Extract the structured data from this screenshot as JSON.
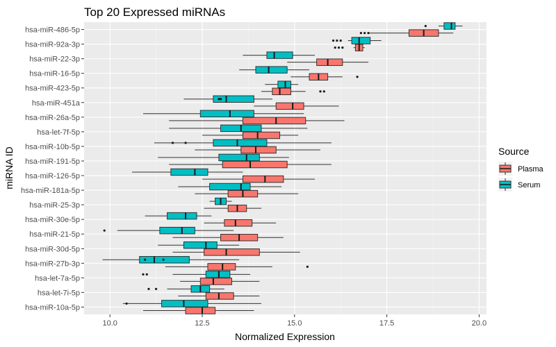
{
  "chart_data": {
    "type": "boxplot",
    "orientation": "horizontal",
    "title": "Top 20 Expressed miRNAs",
    "xlabel": "Normalized Expression",
    "ylabel": "miRNA ID",
    "xlim": [
      9.3,
      20.2
    ],
    "xticks": [
      "10.0",
      "12.5",
      "15.0",
      "17.5",
      "20.0"
    ],
    "xtick_values": [
      10,
      12.5,
      15,
      17.5,
      20
    ],
    "legend": {
      "title": "Source",
      "position": "right",
      "entries": [
        {
          "name": "Plasma",
          "color": "#F8766D"
        },
        {
          "name": "Serum",
          "color": "#00BFC4"
        }
      ]
    },
    "panel_background": "#EBEBEB",
    "grid": true,
    "categories": [
      "hsa-miR-486-5p",
      "hsa-miR-92a-3p",
      "hsa-miR-22-3p",
      "hsa-miR-16-5p",
      "hsa-miR-423-5p",
      "hsa-miR-451a",
      "hsa-miR-26a-5p",
      "hsa-let-7f-5p",
      "hsa-miR-10b-5p",
      "hsa-miR-191-5p",
      "hsa-miR-126-5p",
      "hsa-miR-181a-5p",
      "hsa-miR-25-3p",
      "hsa-miR-30e-5p",
      "hsa-miR-21-5p",
      "hsa-miR-30d-5p",
      "hsa-miR-27b-3p",
      "hsa-let-7a-5p",
      "hsa-let-7i-5p",
      "hsa-miR-10a-5p"
    ],
    "series": [
      {
        "name": "Plasma",
        "boxes": [
          {
            "min": 17.0,
            "q1": 18.1,
            "median": 18.5,
            "q3": 18.9,
            "max": 19.3,
            "outliers": [
              16.8,
              16.9,
              17.0
            ]
          },
          {
            "min": 16.6,
            "q1": 16.65,
            "median": 16.75,
            "q3": 16.85,
            "max": 16.9,
            "outliers": [
              16.1,
              16.2,
              16.3
            ]
          },
          {
            "min": 14.8,
            "q1": 15.6,
            "median": 15.9,
            "q3": 16.3,
            "max": 17.0,
            "outliers": []
          },
          {
            "min": 14.9,
            "q1": 15.4,
            "median": 15.65,
            "q3": 15.9,
            "max": 16.3,
            "outliers": [
              16.7
            ]
          },
          {
            "min": 14.1,
            "q1": 14.4,
            "median": 14.6,
            "q3": 14.9,
            "max": 15.3,
            "outliers": [
              15.7,
              15.8
            ]
          },
          {
            "min": 13.9,
            "q1": 14.5,
            "median": 14.95,
            "q3": 15.25,
            "max": 16.2,
            "outliers": []
          },
          {
            "min": 11.6,
            "q1": 13.6,
            "median": 14.5,
            "q3": 15.3,
            "max": 16.35,
            "outliers": []
          },
          {
            "min": 12.5,
            "q1": 13.6,
            "median": 14.0,
            "q3": 14.6,
            "max": 15.1,
            "outliers": []
          },
          {
            "min": 12.3,
            "q1": 13.55,
            "median": 13.95,
            "q3": 14.5,
            "max": 15.7,
            "outliers": []
          },
          {
            "min": 11.6,
            "q1": 13.05,
            "median": 13.8,
            "q3": 14.8,
            "max": 16.0,
            "outliers": []
          },
          {
            "min": 12.5,
            "q1": 13.6,
            "median": 14.2,
            "q3": 14.7,
            "max": 15.55,
            "outliers": []
          },
          {
            "min": 12.3,
            "q1": 13.2,
            "median": 13.6,
            "q3": 14.0,
            "max": 15.1,
            "outliers": []
          },
          {
            "min": 12.55,
            "q1": 13.2,
            "median": 13.45,
            "q3": 13.7,
            "max": 14.1,
            "outliers": []
          },
          {
            "min": 12.55,
            "q1": 13.1,
            "median": 13.4,
            "q3": 13.85,
            "max": 14.5,
            "outliers": []
          },
          {
            "min": 11.7,
            "q1": 13.0,
            "median": 13.5,
            "q3": 14.0,
            "max": 14.7,
            "outliers": []
          },
          {
            "min": 11.7,
            "q1": 12.55,
            "median": 13.15,
            "q3": 14.05,
            "max": 15.15,
            "outliers": []
          },
          {
            "min": 11.5,
            "q1": 12.65,
            "median": 13.05,
            "q3": 13.4,
            "max": 14.4,
            "outliers": [
              15.35
            ]
          },
          {
            "min": 11.9,
            "q1": 12.45,
            "median": 12.8,
            "q3": 13.3,
            "max": 14.05,
            "outliers": []
          },
          {
            "min": 11.85,
            "q1": 12.6,
            "median": 12.95,
            "q3": 13.35,
            "max": 14.05,
            "outliers": []
          },
          {
            "min": 10.9,
            "q1": 12.05,
            "median": 12.5,
            "q3": 12.85,
            "max": 13.9,
            "outliers": []
          }
        ]
      },
      {
        "name": "Serum",
        "boxes": [
          {
            "min": 18.9,
            "q1": 19.05,
            "median": 19.25,
            "q3": 19.35,
            "max": 19.55,
            "outliers": [
              18.55
            ]
          },
          {
            "min": 16.45,
            "q1": 16.55,
            "median": 16.75,
            "q3": 17.05,
            "max": 17.35,
            "outliers": [
              16.05,
              16.15,
              16.25
            ]
          },
          {
            "min": 13.6,
            "q1": 14.25,
            "median": 14.45,
            "q3": 14.95,
            "max": 15.55,
            "outliers": []
          },
          {
            "min": 13.5,
            "q1": 13.95,
            "median": 14.3,
            "q3": 14.8,
            "max": 15.4,
            "outliers": []
          },
          {
            "min": 14.2,
            "q1": 14.55,
            "median": 14.75,
            "q3": 14.9,
            "max": 15.1,
            "outliers": []
          },
          {
            "min": 12.0,
            "q1": 12.8,
            "median": 13.15,
            "q3": 13.9,
            "max": 14.4,
            "outliers": [
              12.95,
              13.0
            ]
          },
          {
            "min": 10.9,
            "q1": 12.45,
            "median": 13.25,
            "q3": 13.9,
            "max": 15.25,
            "outliers": []
          },
          {
            "min": 11.6,
            "q1": 13.0,
            "median": 13.55,
            "q3": 14.1,
            "max": 15.35,
            "outliers": []
          },
          {
            "min": 11.2,
            "q1": 12.8,
            "median": 13.45,
            "q3": 14.25,
            "max": 16.0,
            "outliers": [
              11.7,
              12.05
            ]
          },
          {
            "min": 11.3,
            "q1": 12.95,
            "median": 13.7,
            "q3": 14.05,
            "max": 14.85,
            "outliers": []
          },
          {
            "min": 10.6,
            "q1": 11.65,
            "median": 12.3,
            "q3": 12.65,
            "max": 13.6,
            "outliers": []
          },
          {
            "min": 11.85,
            "q1": 12.7,
            "median": 13.55,
            "q3": 13.8,
            "max": 14.65,
            "outliers": []
          },
          {
            "min": 12.7,
            "q1": 12.85,
            "median": 13.0,
            "q3": 13.15,
            "max": 13.3,
            "outliers": []
          },
          {
            "min": 10.95,
            "q1": 11.55,
            "median": 12.05,
            "q3": 12.35,
            "max": 12.75,
            "outliers": []
          },
          {
            "min": 10.2,
            "q1": 11.35,
            "median": 11.95,
            "q3": 12.3,
            "max": 13.35,
            "outliers": [
              9.85
            ]
          },
          {
            "min": 11.3,
            "q1": 12.0,
            "median": 12.6,
            "q3": 12.9,
            "max": 13.5,
            "outliers": []
          },
          {
            "min": 9.8,
            "q1": 10.8,
            "median": 11.2,
            "q3": 12.15,
            "max": 13.5,
            "outliers": [
              10.95,
              11.45
            ]
          },
          {
            "min": 11.7,
            "q1": 12.6,
            "median": 12.95,
            "q3": 13.25,
            "max": 13.8,
            "outliers": [
              10.9,
              11.0
            ]
          },
          {
            "min": 11.55,
            "q1": 12.2,
            "median": 12.45,
            "q3": 12.7,
            "max": 13.1,
            "outliers": [
              11.05,
              11.25
            ]
          },
          {
            "min": 10.35,
            "q1": 11.4,
            "median": 12.0,
            "q3": 12.65,
            "max": 14.1,
            "outliers": [
              10.45
            ]
          }
        ]
      }
    ]
  }
}
